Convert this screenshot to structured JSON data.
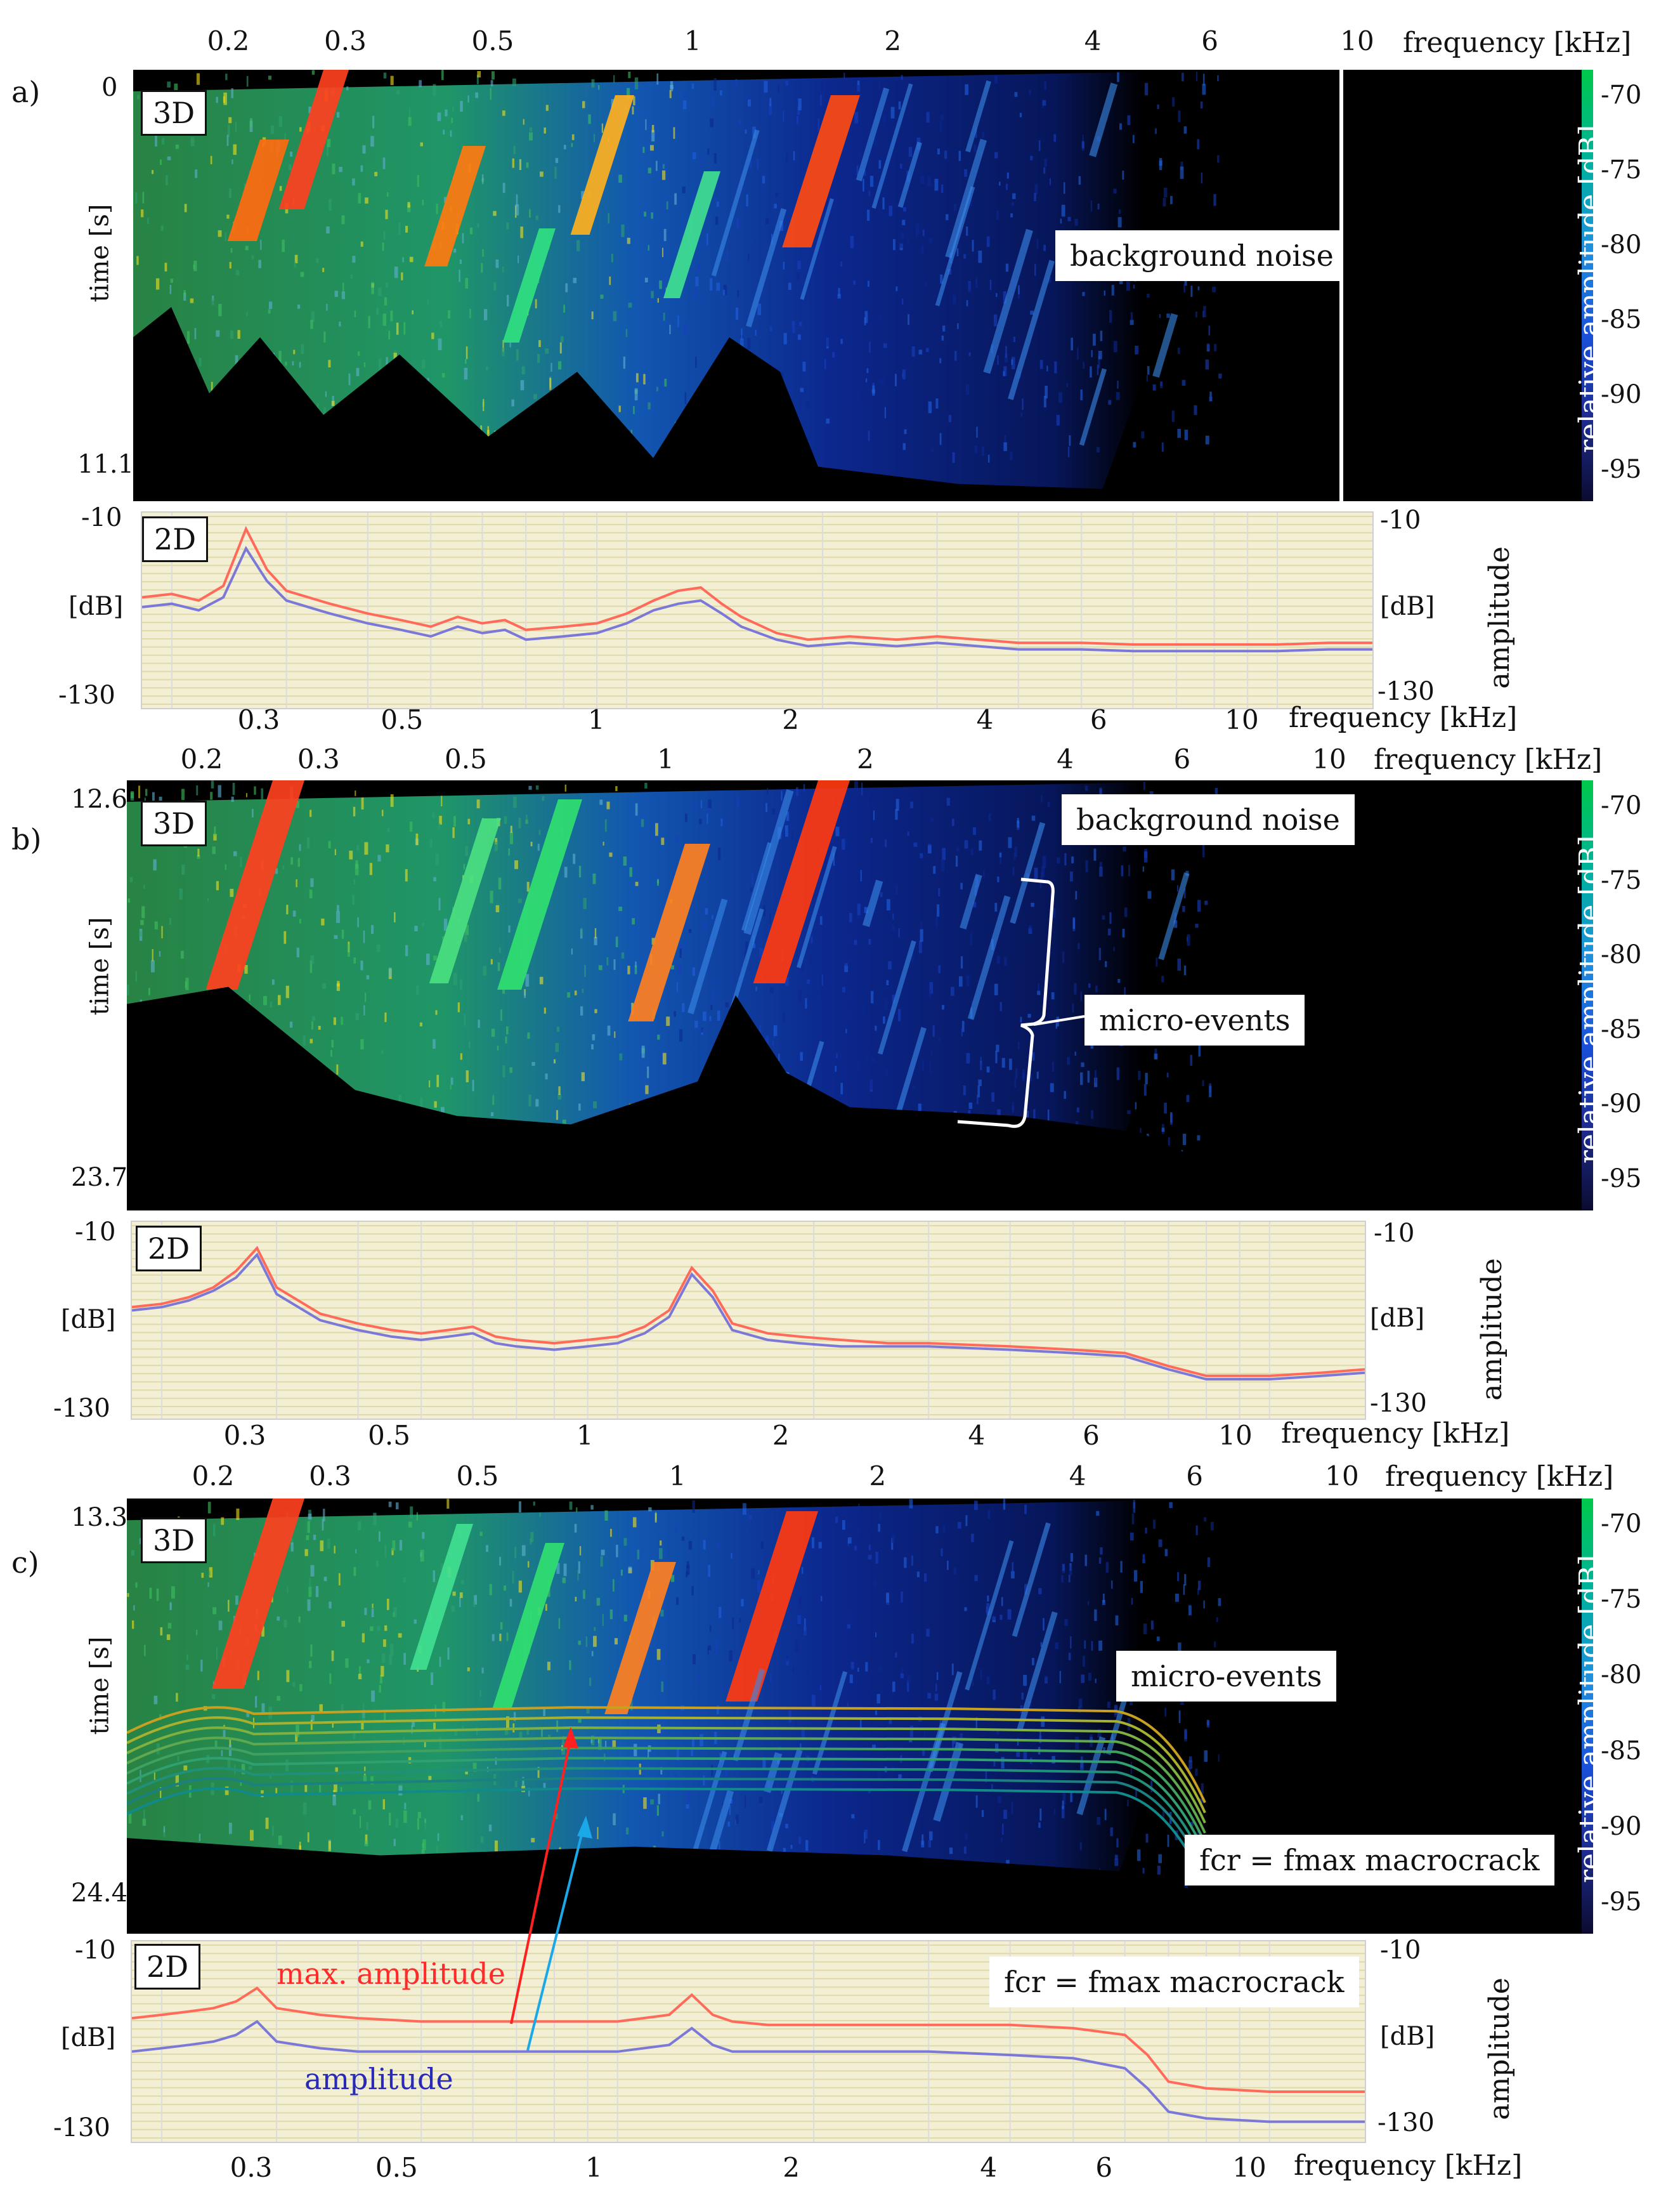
{
  "chart_data": [
    {
      "panel": "a)",
      "type": "heatmap",
      "tag": "3D",
      "x_ticks": [
        "0.2",
        "0.3",
        "0.5",
        "1",
        "2",
        "4",
        "6",
        "10"
      ],
      "x_tick_values": [
        0.2,
        0.3,
        0.5,
        1,
        2,
        4,
        6,
        10
      ],
      "xlabel": "frequency [kHz]",
      "ylabel": "time [s]",
      "time_range": [
        "0",
        "11.1"
      ],
      "colorbar_label": "relative amplitude [dB]",
      "colorbar_ticks": [
        "-70",
        "-75",
        "-80",
        "-85",
        "-90",
        "-95"
      ],
      "annotations": [
        "background noise"
      ]
    },
    {
      "panel": "a)",
      "type": "line",
      "tag": "2D",
      "y_ticks": [
        "-10",
        "-130"
      ],
      "ylabel_left": "[dB]",
      "right_ticks": [
        "-10",
        "-130"
      ],
      "ylabel_right": "[dB]",
      "ylabel_right2": "amplitude",
      "x_ticks": [
        "0.3",
        "0.5",
        "1",
        "2",
        "4",
        "6",
        "10"
      ],
      "x_tick_values": [
        0.3,
        0.5,
        1,
        2,
        4,
        6,
        10
      ],
      "xlabel": "frequency [kHz]",
      "ylim": [
        -130,
        -10
      ],
      "series": [
        {
          "color": "#ff6a5a",
          "x": [
            0.18,
            0.2,
            0.22,
            0.24,
            0.26,
            0.28,
            0.3,
            0.35,
            0.4,
            0.45,
            0.5,
            0.55,
            0.6,
            0.65,
            0.7,
            0.8,
            0.9,
            1.0,
            1.1,
            1.2,
            1.3,
            1.4,
            1.5,
            1.7,
            1.9,
            2.2,
            2.6,
            3,
            4,
            5,
            6,
            8,
            10,
            12,
            14
          ],
          "y": [
            -62,
            -60,
            -64,
            -55,
            -20,
            -45,
            -58,
            -66,
            -72,
            -76,
            -80,
            -74,
            -78,
            -76,
            -82,
            -80,
            -78,
            -72,
            -64,
            -58,
            -56,
            -66,
            -74,
            -84,
            -88,
            -86,
            -88,
            -86,
            -90,
            -90,
            -91,
            -91,
            -91,
            -90,
            -90
          ]
        },
        {
          "color": "#7c78d8",
          "x": [
            0.18,
            0.2,
            0.22,
            0.24,
            0.26,
            0.28,
            0.3,
            0.35,
            0.4,
            0.45,
            0.5,
            0.55,
            0.6,
            0.65,
            0.7,
            0.8,
            0.9,
            1.0,
            1.1,
            1.2,
            1.3,
            1.4,
            1.5,
            1.7,
            1.9,
            2.2,
            2.6,
            3,
            4,
            5,
            6,
            8,
            10,
            12,
            14
          ],
          "y": [
            -68,
            -66,
            -70,
            -62,
            -32,
            -52,
            -64,
            -72,
            -78,
            -82,
            -86,
            -80,
            -84,
            -82,
            -88,
            -86,
            -84,
            -78,
            -70,
            -66,
            -64,
            -72,
            -80,
            -88,
            -92,
            -90,
            -92,
            -90,
            -94,
            -94,
            -95,
            -95,
            -95,
            -94,
            -94
          ]
        }
      ]
    },
    {
      "panel": "b)",
      "type": "heatmap",
      "tag": "3D",
      "x_ticks": [
        "0.2",
        "0.3",
        "0.5",
        "1",
        "2",
        "4",
        "6",
        "10"
      ],
      "x_tick_values": [
        0.2,
        0.3,
        0.5,
        1,
        2,
        4,
        6,
        10
      ],
      "xlabel": "frequency [kHz]",
      "ylabel": "time [s]",
      "time_range": [
        "12.6",
        "23.7"
      ],
      "colorbar_label": "relative amplitude [dB]",
      "colorbar_ticks": [
        "-70",
        "-75",
        "-80",
        "-85",
        "-90",
        "-95"
      ],
      "annotations": [
        "background noise",
        "micro-events"
      ]
    },
    {
      "panel": "b)",
      "type": "line",
      "tag": "2D",
      "y_ticks": [
        "-10",
        "-130"
      ],
      "ylabel_left": "[dB]",
      "right_ticks": [
        "-10",
        "-130"
      ],
      "ylabel_right": "[dB]",
      "ylabel_right2": "amplitude",
      "x_ticks": [
        "0.3",
        "0.5",
        "1",
        "2",
        "4",
        "6",
        "10"
      ],
      "x_tick_values": [
        0.3,
        0.5,
        1,
        2,
        4,
        6,
        10
      ],
      "xlabel": "frequency [kHz]",
      "ylim": [
        -130,
        -10
      ],
      "series": [
        {
          "color": "#ff6a5a",
          "x": [
            0.18,
            0.2,
            0.22,
            0.24,
            0.26,
            0.28,
            0.3,
            0.35,
            0.4,
            0.45,
            0.5,
            0.55,
            0.6,
            0.65,
            0.7,
            0.8,
            0.9,
            1.0,
            1.1,
            1.2,
            1.3,
            1.4,
            1.5,
            1.7,
            1.9,
            2.2,
            2.6,
            3,
            4,
            5,
            6,
            7,
            8,
            10,
            12,
            14
          ],
          "y": [
            -62,
            -60,
            -56,
            -50,
            -40,
            -26,
            -50,
            -66,
            -72,
            -76,
            -78,
            -76,
            -74,
            -80,
            -82,
            -84,
            -82,
            -80,
            -74,
            -64,
            -38,
            -52,
            -72,
            -78,
            -80,
            -82,
            -84,
            -84,
            -86,
            -88,
            -90,
            -98,
            -104,
            -104,
            -102,
            -100
          ]
        },
        {
          "color": "#7c78d8",
          "x": [
            0.18,
            0.2,
            0.22,
            0.24,
            0.26,
            0.28,
            0.3,
            0.35,
            0.4,
            0.45,
            0.5,
            0.55,
            0.6,
            0.65,
            0.7,
            0.8,
            0.9,
            1.0,
            1.1,
            1.2,
            1.3,
            1.4,
            1.5,
            1.7,
            1.9,
            2.2,
            2.6,
            3,
            4,
            5,
            6,
            7,
            8,
            10,
            12,
            14
          ],
          "y": [
            -64,
            -62,
            -58,
            -52,
            -44,
            -30,
            -54,
            -70,
            -76,
            -80,
            -82,
            -80,
            -78,
            -84,
            -86,
            -88,
            -86,
            -84,
            -78,
            -68,
            -42,
            -56,
            -76,
            -82,
            -84,
            -86,
            -86,
            -86,
            -88,
            -90,
            -92,
            -100,
            -106,
            -106,
            -104,
            -102
          ]
        }
      ]
    },
    {
      "panel": "c)",
      "type": "heatmap",
      "tag": "3D",
      "x_ticks": [
        "0.2",
        "0.3",
        "0.5",
        "1",
        "2",
        "4",
        "6",
        "10"
      ],
      "x_tick_values": [
        0.2,
        0.3,
        0.5,
        1,
        2,
        4,
        6,
        10
      ],
      "xlabel": "frequency [kHz]",
      "ylabel": "time [s]",
      "time_range": [
        "13.3",
        "24.4"
      ],
      "colorbar_label": "relative amplitude [dB]",
      "colorbar_ticks": [
        "-70",
        "-75",
        "-80",
        "-85",
        "-90",
        "-95"
      ],
      "annotations": [
        "micro-events",
        "fcr = fmax macrocrack"
      ]
    },
    {
      "panel": "c)",
      "type": "line",
      "tag": "2D",
      "y_ticks": [
        "-10",
        "-130"
      ],
      "ylabel_left": "[dB]",
      "right_ticks": [
        "-10",
        "-130"
      ],
      "ylabel_right": "[dB]",
      "ylabel_right2": "amplitude",
      "x_ticks": [
        "0.3",
        "0.5",
        "1",
        "2",
        "4",
        "6",
        "10"
      ],
      "x_tick_values": [
        0.3,
        0.5,
        1,
        2,
        4,
        6,
        10
      ],
      "xlabel": "frequency [kHz]",
      "ylim": [
        -130,
        -10
      ],
      "annotations": [
        "max. amplitude",
        "amplitude",
        "fcr = fmax macrocrack"
      ],
      "series": [
        {
          "name": "max. amplitude",
          "color": "#ff6a5a",
          "x": [
            0.18,
            0.2,
            0.22,
            0.24,
            0.26,
            0.28,
            0.3,
            0.35,
            0.4,
            0.5,
            0.6,
            0.7,
            0.8,
            1.0,
            1.2,
            1.3,
            1.4,
            1.5,
            1.7,
            2,
            3,
            4,
            5,
            6,
            6.5,
            7,
            8,
            10,
            12,
            14
          ],
          "y": [
            -56,
            -54,
            -52,
            -50,
            -46,
            -38,
            -50,
            -54,
            -56,
            -58,
            -58,
            -58,
            -58,
            -58,
            -54,
            -42,
            -54,
            -58,
            -60,
            -60,
            -60,
            -60,
            -62,
            -66,
            -78,
            -94,
            -98,
            -100,
            -100,
            -100
          ]
        },
        {
          "name": "amplitude",
          "color": "#7c78d8",
          "x": [
            0.18,
            0.2,
            0.22,
            0.24,
            0.26,
            0.28,
            0.3,
            0.35,
            0.4,
            0.5,
            0.6,
            0.7,
            0.8,
            1.0,
            1.2,
            1.3,
            1.4,
            1.5,
            1.7,
            2,
            3,
            4,
            5,
            6,
            6.5,
            7,
            8,
            10,
            12,
            14
          ],
          "y": [
            -76,
            -74,
            -72,
            -70,
            -66,
            -58,
            -70,
            -74,
            -76,
            -76,
            -76,
            -76,
            -76,
            -76,
            -72,
            -62,
            -72,
            -76,
            -76,
            -76,
            -76,
            -78,
            -80,
            -86,
            -98,
            -112,
            -116,
            -118,
            -118,
            -118
          ]
        }
      ]
    }
  ],
  "ui": {
    "letters": [
      "a)",
      "b)",
      "c)"
    ],
    "c_2d_labels": {
      "max": "max. amplitude",
      "amp": "amplitude"
    },
    "colors": {
      "max_amplitude": "#ff2a2a",
      "amplitude": "#2a2ab8",
      "arrow_red": "#ff2020",
      "arrow_blue": "#1aa8e8"
    }
  }
}
